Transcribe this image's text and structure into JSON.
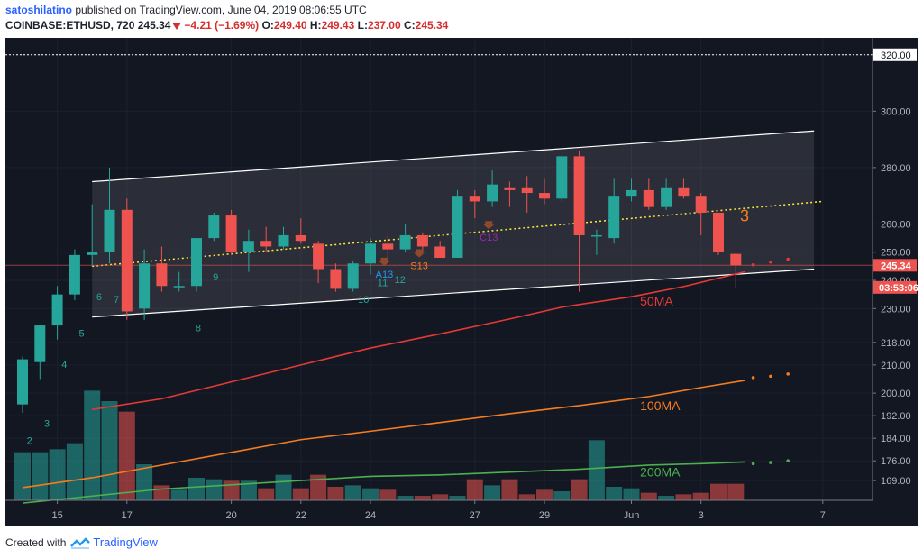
{
  "header": {
    "author": "satoshilatino",
    "published": "published on TradingView.com, June 04, 2019 08:06:55 UTC",
    "symbol": "COINBASE:ETHUSD, 720",
    "last": "245.34",
    "change": "−4.21 (−1.69%)",
    "o_label": "O:",
    "o": "249.40",
    "h_label": "H:",
    "h": "249.43",
    "l_label": "L:",
    "l": "237.00",
    "c_label": "C:",
    "c": "245.34"
  },
  "footer": {
    "created": "Created with",
    "brand": "TradingView"
  },
  "colors": {
    "bg": "#131722",
    "up": "#26a69a",
    "down": "#ef5350",
    "ma50": "#e53935",
    "ma100": "#f57c20",
    "ma200": "#4caf50",
    "channel": "#ffffff",
    "midline": "#ffeb3b"
  },
  "chart_data": {
    "type": "candlestick",
    "ylim": [
      162,
      326
    ],
    "x_ticks": [
      "15",
      "17",
      "20",
      "22",
      "24",
      "27",
      "29",
      "Jun",
      "3",
      "7"
    ],
    "x_tick_pos": [
      2,
      6,
      12,
      16,
      20,
      26,
      30,
      35,
      39,
      46
    ],
    "y_ticks": [
      "320.00",
      "300.00",
      "280.00",
      "260.00",
      "250.00",
      "240.00",
      "230.00",
      "218.00",
      "210.00",
      "200.00",
      "192.00",
      "184.00",
      "176.00",
      "169.00"
    ],
    "price_labels": [
      {
        "text": "320.00",
        "value": 320,
        "style": "dotted"
      },
      {
        "text": "245.34",
        "value": 245.34,
        "style": "current"
      },
      {
        "text": "03:53:06",
        "value": 237.5,
        "style": "timer"
      }
    ],
    "candles": [
      {
        "o": 196,
        "h": 213,
        "l": 193,
        "c": 212
      },
      {
        "o": 211,
        "h": 224,
        "l": 205,
        "c": 224
      },
      {
        "o": 224,
        "h": 238,
        "l": 219,
        "c": 235
      },
      {
        "o": 235,
        "h": 251,
        "l": 233,
        "c": 249
      },
      {
        "o": 249,
        "h": 267,
        "l": 245,
        "c": 250
      },
      {
        "o": 250,
        "h": 280,
        "l": 246,
        "c": 265
      },
      {
        "o": 265,
        "h": 269,
        "l": 226,
        "c": 229
      },
      {
        "o": 230,
        "h": 251,
        "l": 226,
        "c": 246
      },
      {
        "o": 246,
        "h": 252,
        "l": 236,
        "c": 238
      },
      {
        "o": 238,
        "h": 243,
        "l": 236,
        "c": 238
      },
      {
        "o": 238,
        "h": 255,
        "l": 236,
        "c": 255
      },
      {
        "o": 255,
        "h": 264,
        "l": 254,
        "c": 263
      },
      {
        "o": 263,
        "h": 265,
        "l": 249,
        "c": 250
      },
      {
        "o": 250,
        "h": 258,
        "l": 243,
        "c": 254
      },
      {
        "o": 254,
        "h": 259,
        "l": 250,
        "c": 252
      },
      {
        "o": 252,
        "h": 259,
        "l": 251,
        "c": 256
      },
      {
        "o": 256,
        "h": 262,
        "l": 253,
        "c": 254
      },
      {
        "o": 253,
        "h": 254,
        "l": 239,
        "c": 244
      },
      {
        "o": 244,
        "h": 246,
        "l": 236,
        "c": 237
      },
      {
        "o": 237,
        "h": 247,
        "l": 236,
        "c": 246
      },
      {
        "o": 246,
        "h": 255,
        "l": 242,
        "c": 253
      },
      {
        "o": 253,
        "h": 256,
        "l": 248,
        "c": 251
      },
      {
        "o": 251,
        "h": 260,
        "l": 250,
        "c": 256
      },
      {
        "o": 256,
        "h": 257,
        "l": 250,
        "c": 252
      },
      {
        "o": 252,
        "h": 254,
        "l": 248,
        "c": 248
      },
      {
        "o": 248,
        "h": 272,
        "l": 248,
        "c": 270
      },
      {
        "o": 270,
        "h": 272,
        "l": 262,
        "c": 268
      },
      {
        "o": 268,
        "h": 279,
        "l": 266,
        "c": 274
      },
      {
        "o": 273,
        "h": 275,
        "l": 266,
        "c": 272
      },
      {
        "o": 273,
        "h": 277,
        "l": 264,
        "c": 271
      },
      {
        "o": 271,
        "h": 276,
        "l": 267,
        "c": 269
      },
      {
        "o": 269,
        "h": 283,
        "l": 268,
        "c": 284
      },
      {
        "o": 284,
        "h": 286,
        "l": 236,
        "c": 256
      },
      {
        "o": 256,
        "h": 258,
        "l": 249,
        "c": 256
      },
      {
        "o": 255,
        "h": 276,
        "l": 253,
        "c": 270
      },
      {
        "o": 270,
        "h": 276,
        "l": 268,
        "c": 272
      },
      {
        "o": 272,
        "h": 276,
        "l": 265,
        "c": 266
      },
      {
        "o": 266,
        "h": 276,
        "l": 265,
        "c": 273
      },
      {
        "o": 273,
        "h": 276,
        "l": 269,
        "c": 270
      },
      {
        "o": 270,
        "h": 271,
        "l": 256,
        "c": 264
      },
      {
        "o": 264,
        "h": 264,
        "l": 249,
        "c": 250
      },
      {
        "o": 249.4,
        "h": 249.43,
        "l": 237,
        "c": 245.34
      }
    ],
    "volume": [
      32,
      32,
      34,
      38,
      73,
      66,
      59,
      24,
      10,
      7,
      15,
      14,
      13,
      13,
      8,
      17,
      8,
      17,
      9,
      10,
      8,
      7,
      3,
      3,
      4,
      3,
      14,
      10,
      14,
      4,
      7,
      6,
      14,
      40,
      9,
      8,
      5,
      3,
      4,
      5,
      11,
      11
    ],
    "ma_extension_dots": [
      {
        "series": "50MA",
        "values": [
          245.5,
          246.5,
          247.5
        ]
      },
      {
        "series": "100MA",
        "values": [
          205.5,
          206,
          206.8
        ]
      },
      {
        "series": "200MA",
        "values": [
          175,
          175.4,
          176
        ]
      }
    ],
    "series": [
      {
        "name": "50MA",
        "x": [
          4,
          8,
          12,
          16,
          20,
          24,
          28,
          31,
          35,
          38,
          41.5
        ],
        "values": [
          194.2,
          198,
          204,
          210,
          216,
          221,
          226.3,
          230.5,
          234.2,
          237.8,
          243
        ]
      },
      {
        "name": "100MA",
        "x": [
          0,
          4,
          8,
          12,
          16,
          20,
          24,
          28,
          32,
          36,
          39,
          41.5
        ],
        "values": [
          166.5,
          170,
          174.5,
          179,
          183.5,
          186.5,
          189.6,
          192.7,
          195.6,
          198.8,
          202,
          204.5
        ]
      },
      {
        "name": "200MA",
        "x": [
          0,
          4,
          8,
          12,
          16,
          20,
          24,
          28,
          32,
          36,
          39,
          41.5
        ],
        "values": [
          161,
          163.5,
          166,
          167.5,
          169,
          170.5,
          171,
          172,
          173,
          174.5,
          175,
          175.6
        ]
      }
    ],
    "ma_labels": [
      {
        "text": "50MA",
        "series": "50MA",
        "x": 35.5,
        "y": 231
      },
      {
        "text": "100MA",
        "series": "100MA",
        "x": 35.5,
        "y": 194
      },
      {
        "text": "200MA",
        "series": "200MA",
        "x": 35.5,
        "y": 170.5
      }
    ],
    "channel": {
      "upper": {
        "x0": 4,
        "y0": 275,
        "x1": 45.5,
        "y1": 293
      },
      "lower": {
        "x0": 4,
        "y0": 227,
        "x1": 45.5,
        "y1": 244
      }
    },
    "midline": {
      "x0": 4,
      "y0": 245,
      "x1": 46,
      "y1": 268
    },
    "td_counts": [
      {
        "text": "2",
        "x": 0.4,
        "y": 182,
        "color": "#26a69a"
      },
      {
        "text": "3",
        "x": 1.4,
        "y": 188,
        "color": "#26a69a"
      },
      {
        "text": "4",
        "x": 2.4,
        "y": 209,
        "color": "#26a69a"
      },
      {
        "text": "5",
        "x": 3.4,
        "y": 220,
        "color": "#26a69a"
      },
      {
        "text": "6",
        "x": 4.4,
        "y": 233,
        "color": "#26a69a"
      },
      {
        "text": "7",
        "x": 5.4,
        "y": 232,
        "color": "#26a69a"
      },
      {
        "text": "8",
        "x": 10.1,
        "y": 222,
        "color": "#26a69a"
      },
      {
        "text": "9",
        "x": 11.1,
        "y": 240,
        "color": "#26a69a"
      },
      {
        "text": "10",
        "x": 19.6,
        "y": 232,
        "color": "#26a69a"
      },
      {
        "text": "11",
        "x": 20.7,
        "y": 238,
        "color": "#26a69a"
      },
      {
        "text": "12",
        "x": 21.7,
        "y": 239,
        "color": "#26a69a"
      },
      {
        "text": "3",
        "x": 41.5,
        "y": 261,
        "color": "#f57c20",
        "size": 18
      }
    ],
    "annotations": [
      {
        "text": "A13",
        "x": 20.8,
        "y": 241,
        "color": "#2196f3",
        "arrow": true
      },
      {
        "text": "S13",
        "x": 22.8,
        "y": 244,
        "color": "#f57c20",
        "arrow": true
      },
      {
        "text": "C13",
        "x": 26.8,
        "y": 254,
        "color": "#9c27b0",
        "arrow": true
      }
    ]
  }
}
